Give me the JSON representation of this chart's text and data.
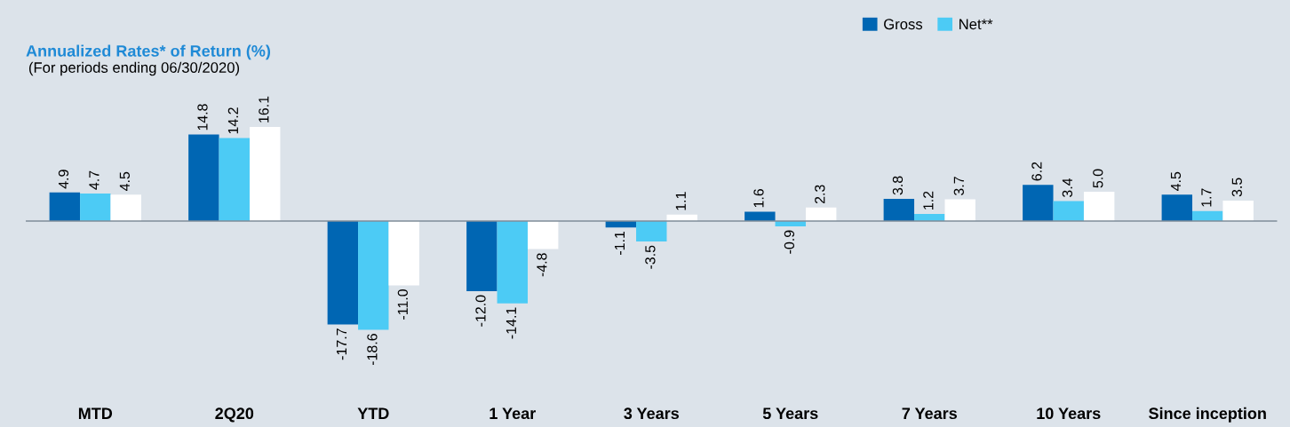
{
  "chart_data": {
    "type": "bar",
    "title": "Annualized Rates* of Return (%)",
    "subtitle": "(For periods ending 06/30/2020)",
    "categories": [
      "MTD",
      "2Q20",
      "YTD",
      "1 Year",
      "3 Years",
      "5 Years",
      "7 Years",
      "10 Years",
      "Since inception"
    ],
    "series": [
      {
        "name": "Gross",
        "color": "#0066b3",
        "values": [
          4.9,
          14.8,
          -17.7,
          -12.0,
          -1.1,
          1.6,
          3.8,
          6.2,
          4.5
        ],
        "value_labels": [
          "4.9",
          "14.8",
          "-17.7",
          "-12.0",
          "-1.1",
          "1.6",
          "3.8",
          "6.2",
          "4.5"
        ]
      },
      {
        "name": "Net**",
        "color": "#4ccbf5",
        "values": [
          4.7,
          14.2,
          -18.6,
          -14.1,
          -3.5,
          -0.9,
          1.2,
          3.4,
          1.7
        ],
        "value_labels": [
          "4.7",
          "14.2",
          "-18.6",
          "-14.1",
          "-3.5",
          "-0.9",
          "1.2",
          "3.4",
          "1.7"
        ]
      },
      {
        "color": "#ffffff",
        "values": [
          4.5,
          16.1,
          -11.0,
          -4.8,
          1.1,
          2.3,
          3.7,
          5.0,
          3.5
        ],
        "value_labels": [
          "4.5",
          "16.1",
          "-11.0",
          "-4.8",
          "1.1",
          "2.3",
          "3.7",
          "5.0",
          "3.5"
        ]
      }
    ],
    "legend": "top right"
  }
}
